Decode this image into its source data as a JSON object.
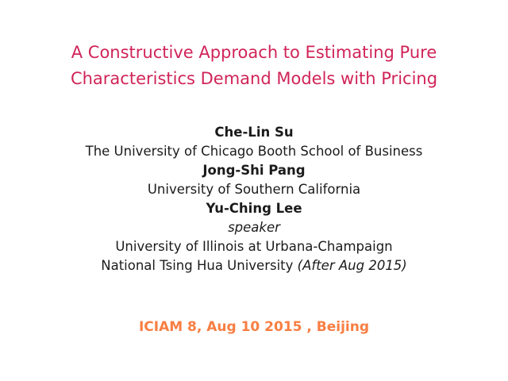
{
  "slide": {
    "title": {
      "line1": "A Constructive Approach to Estimating Pure",
      "line2": "Characteristics Demand Models with Pricing"
    },
    "authors": [
      {
        "name": "Che-Lin Su",
        "affiliation": "The University of Chicago Booth School of Business"
      },
      {
        "name": "Jong-Shi Pang",
        "affiliation": "University of Southern California"
      },
      {
        "name": "Yu-Ching Lee",
        "role": "speaker",
        "affiliation": "University of Illinois at Urbana-Champaign",
        "affiliation2": "National Tsing Hua University",
        "affiliation2_note": "(After Aug 2015)"
      }
    ],
    "conference": "ICIAM 8, Aug 10 2015 , Beijing",
    "colors": {
      "title_text": "#d02458",
      "conference_text": "#f87e42",
      "body_text": "#1b1b1b",
      "background": "#ffffff"
    }
  }
}
